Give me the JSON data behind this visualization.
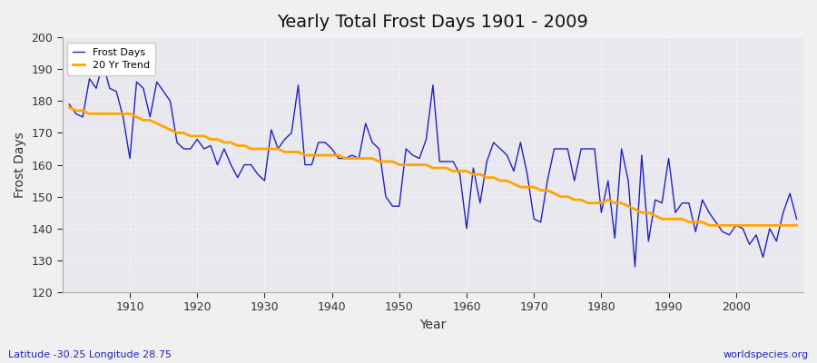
{
  "title": "Yearly Total Frost Days 1901 - 2009",
  "xlabel": "Year",
  "ylabel": "Frost Days",
  "subtitle_left": "Latitude -30.25 Longitude 28.75",
  "subtitle_right": "worldspecies.org",
  "ylim": [
    120,
    200
  ],
  "xlim": [
    1900,
    2010
  ],
  "yticks": [
    120,
    130,
    140,
    150,
    160,
    170,
    180,
    190,
    200
  ],
  "xticks": [
    1910,
    1920,
    1930,
    1940,
    1950,
    1960,
    1970,
    1980,
    1990,
    2000
  ],
  "line_color": "#2222bb",
  "trend_color": "#FFA500",
  "figure_bg_color": "#f0f0f0",
  "plot_bg_color": "#e8e8ee",
  "grid_color": "#ffffff",
  "years": [
    1901,
    1902,
    1903,
    1904,
    1905,
    1906,
    1907,
    1908,
    1909,
    1910,
    1911,
    1912,
    1913,
    1914,
    1915,
    1916,
    1917,
    1918,
    1919,
    1920,
    1921,
    1922,
    1923,
    1924,
    1925,
    1926,
    1927,
    1928,
    1929,
    1930,
    1931,
    1932,
    1933,
    1934,
    1935,
    1936,
    1937,
    1938,
    1939,
    1940,
    1941,
    1942,
    1943,
    1944,
    1945,
    1946,
    1947,
    1948,
    1949,
    1950,
    1951,
    1952,
    1953,
    1954,
    1955,
    1956,
    1957,
    1958,
    1959,
    1960,
    1961,
    1962,
    1963,
    1964,
    1965,
    1966,
    1967,
    1968,
    1969,
    1970,
    1971,
    1972,
    1973,
    1974,
    1975,
    1976,
    1977,
    1978,
    1979,
    1980,
    1981,
    1982,
    1983,
    1984,
    1985,
    1986,
    1987,
    1988,
    1989,
    1990,
    1991,
    1992,
    1993,
    1994,
    1995,
    1996,
    1997,
    1998,
    1999,
    2000,
    2001,
    2002,
    2003,
    2004,
    2005,
    2006,
    2007,
    2008,
    2009
  ],
  "frost_days": [
    179,
    176,
    175,
    187,
    184,
    192,
    184,
    183,
    175,
    162,
    186,
    184,
    175,
    186,
    183,
    180,
    167,
    165,
    165,
    168,
    165,
    166,
    160,
    165,
    160,
    156,
    160,
    160,
    157,
    155,
    171,
    165,
    168,
    170,
    185,
    160,
    160,
    167,
    167,
    165,
    162,
    162,
    163,
    162,
    173,
    167,
    165,
    150,
    147,
    147,
    165,
    163,
    162,
    168,
    185,
    161,
    161,
    161,
    157,
    140,
    159,
    148,
    161,
    167,
    165,
    163,
    158,
    167,
    157,
    143,
    142,
    155,
    165,
    165,
    165,
    155,
    165,
    165,
    165,
    145,
    155,
    137,
    165,
    155,
    128,
    163,
    136,
    149,
    148,
    162,
    145,
    148,
    148,
    139,
    149,
    145,
    142,
    139,
    138,
    141,
    140,
    135,
    138,
    131,
    140,
    136,
    145,
    151,
    143
  ],
  "trend": [
    178,
    177,
    177,
    176,
    176,
    176,
    176,
    176,
    176,
    176,
    175,
    174,
    174,
    173,
    172,
    171,
    170,
    170,
    169,
    169,
    169,
    168,
    168,
    167,
    167,
    166,
    166,
    165,
    165,
    165,
    165,
    165,
    164,
    164,
    164,
    163,
    163,
    163,
    163,
    163,
    163,
    162,
    162,
    162,
    162,
    162,
    161,
    161,
    161,
    160,
    160,
    160,
    160,
    160,
    159,
    159,
    159,
    158,
    158,
    158,
    157,
    157,
    156,
    156,
    155,
    155,
    154,
    153,
    153,
    153,
    152,
    152,
    151,
    150,
    150,
    149,
    149,
    148,
    148,
    148,
    149,
    148,
    148,
    147,
    146,
    145,
    145,
    144,
    143,
    143,
    143,
    143,
    142,
    142,
    142,
    141,
    141,
    141,
    141,
    141,
    141,
    141,
    141,
    141,
    141,
    141,
    141,
    141,
    141
  ]
}
